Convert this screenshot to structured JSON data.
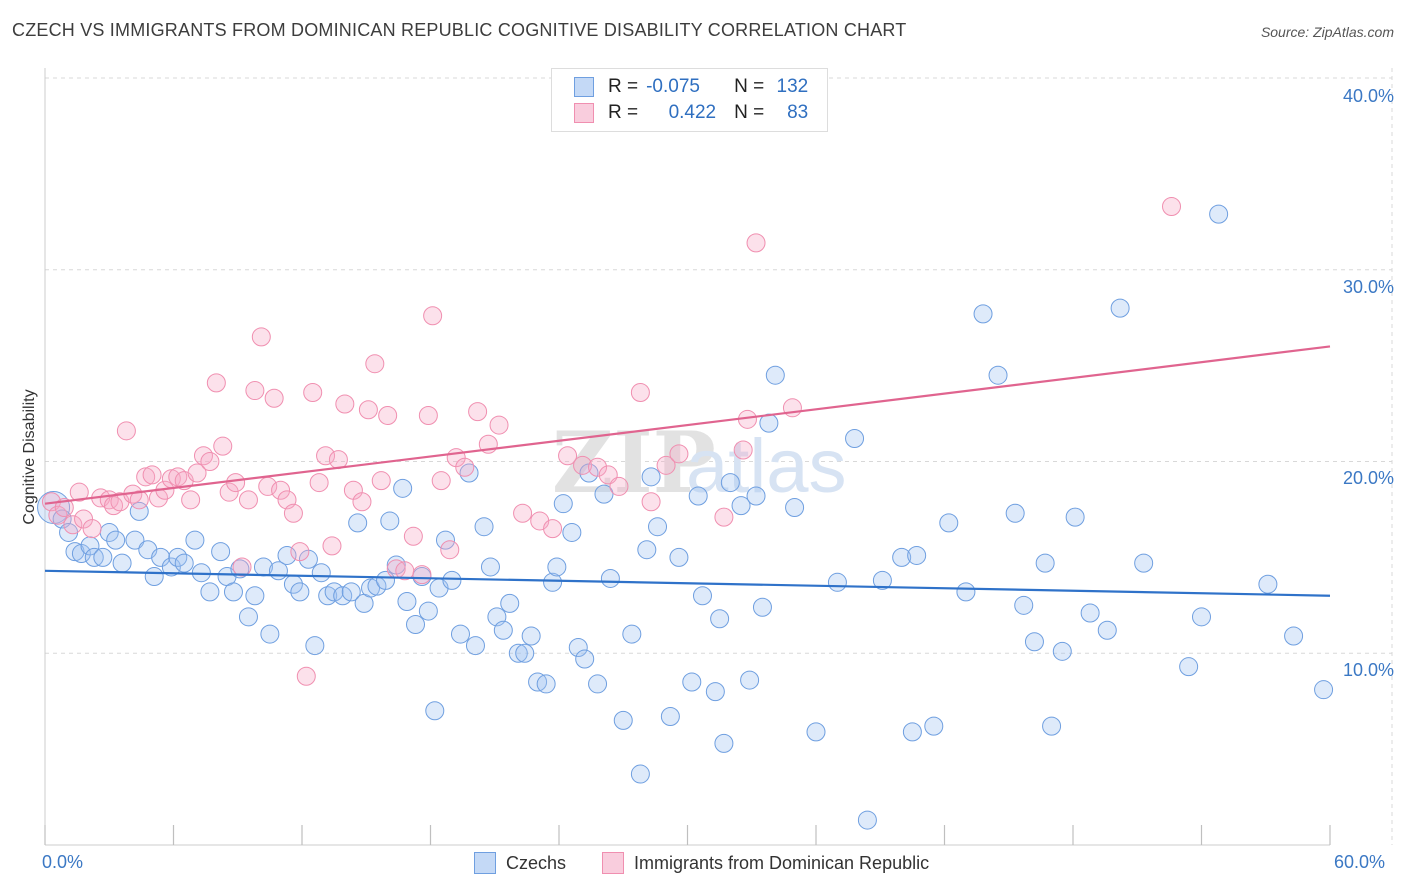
{
  "title": "CZECH VS IMMIGRANTS FROM DOMINICAN REPUBLIC COGNITIVE DISABILITY CORRELATION CHART",
  "source": "Source: ZipAtlas.com",
  "watermark": {
    "part1": "ZIP",
    "part2": "atlas"
  },
  "colors": {
    "blue": "#6f9fe0",
    "blue_line": "#2f72c9",
    "pink": "#f08fb0",
    "pink_line": "#e0648f",
    "grid": "#d8d8d8",
    "tick_text": "#3b78c4"
  },
  "stats": [
    {
      "r_label": "R =",
      "r_value": "-0.075",
      "n_label": "N =",
      "n_value": "132"
    },
    {
      "r_label": "R =",
      "r_value": "0.422",
      "n_label": "N =",
      "n_value": "83"
    }
  ],
  "legend": [
    {
      "label": "Czechs"
    },
    {
      "label": "Immigrants from Dominican Republic"
    }
  ],
  "chart_data": {
    "type": "scatter",
    "title": "CZECH VS IMMIGRANTS FROM DOMINICAN REPUBLIC COGNITIVE DISABILITY CORRELATION CHART",
    "xlabel": "",
    "ylabel": "Cognitive Disability",
    "xlim": [
      0,
      60
    ],
    "ylim": [
      0,
      40
    ],
    "x_tick_labels": [
      "0.0%",
      "60.0%"
    ],
    "y_ticks": [
      10,
      20,
      30,
      40
    ],
    "y_tick_labels": [
      "10.0%",
      "20.0%",
      "30.0%",
      "40.0%"
    ],
    "grid": true,
    "legend_position": "bottom",
    "series": [
      {
        "name": "Czechs",
        "r": -0.075,
        "n": 132,
        "trend": {
          "x": [
            0,
            60
          ],
          "y": [
            14.3,
            13.0
          ]
        },
        "points": [
          [
            0.4,
            17.6
          ],
          [
            0.8,
            17.0
          ],
          [
            1.1,
            16.3
          ],
          [
            1.4,
            15.3
          ],
          [
            1.7,
            15.2
          ],
          [
            2.1,
            15.6
          ],
          [
            2.3,
            15.0
          ],
          [
            2.7,
            15.0
          ],
          [
            3.0,
            16.3
          ],
          [
            3.3,
            15.9
          ],
          [
            3.6,
            14.7
          ],
          [
            4.2,
            15.9
          ],
          [
            4.4,
            17.4
          ],
          [
            4.8,
            15.4
          ],
          [
            5.1,
            14.0
          ],
          [
            5.4,
            15.0
          ],
          [
            5.9,
            14.5
          ],
          [
            6.2,
            15.0
          ],
          [
            6.5,
            14.7
          ],
          [
            7.0,
            15.9
          ],
          [
            7.3,
            14.2
          ],
          [
            7.7,
            13.2
          ],
          [
            8.2,
            15.3
          ],
          [
            8.5,
            14.0
          ],
          [
            8.8,
            13.2
          ],
          [
            9.1,
            14.4
          ],
          [
            9.5,
            11.9
          ],
          [
            9.8,
            13.0
          ],
          [
            10.2,
            14.5
          ],
          [
            10.5,
            11.0
          ],
          [
            10.9,
            14.3
          ],
          [
            11.3,
            15.1
          ],
          [
            11.6,
            13.6
          ],
          [
            11.9,
            13.2
          ],
          [
            12.3,
            14.9
          ],
          [
            12.6,
            10.4
          ],
          [
            12.9,
            14.2
          ],
          [
            13.2,
            13.0
          ],
          [
            13.5,
            13.2
          ],
          [
            13.9,
            13.0
          ],
          [
            14.3,
            13.2
          ],
          [
            14.6,
            16.8
          ],
          [
            14.9,
            12.6
          ],
          [
            15.2,
            13.4
          ],
          [
            15.5,
            13.5
          ],
          [
            15.9,
            13.8
          ],
          [
            16.1,
            16.9
          ],
          [
            16.4,
            14.6
          ],
          [
            16.7,
            18.6
          ],
          [
            16.9,
            12.7
          ],
          [
            17.3,
            11.5
          ],
          [
            17.6,
            14.0
          ],
          [
            17.9,
            12.2
          ],
          [
            18.2,
            7.0
          ],
          [
            18.4,
            13.4
          ],
          [
            18.7,
            15.9
          ],
          [
            19.0,
            13.8
          ],
          [
            19.4,
            11.0
          ],
          [
            19.8,
            19.4
          ],
          [
            20.1,
            10.4
          ],
          [
            20.5,
            16.6
          ],
          [
            20.8,
            14.5
          ],
          [
            21.1,
            11.9
          ],
          [
            21.4,
            11.2
          ],
          [
            21.7,
            12.6
          ],
          [
            22.1,
            10.0
          ],
          [
            22.4,
            10.0
          ],
          [
            22.7,
            10.9
          ],
          [
            23.0,
            8.5
          ],
          [
            23.4,
            8.4
          ],
          [
            23.7,
            13.7
          ],
          [
            23.9,
            14.5
          ],
          [
            24.2,
            17.8
          ],
          [
            24.6,
            16.3
          ],
          [
            24.9,
            10.3
          ],
          [
            25.2,
            9.7
          ],
          [
            25.4,
            19.4
          ],
          [
            25.8,
            8.4
          ],
          [
            26.1,
            18.3
          ],
          [
            26.4,
            13.9
          ],
          [
            27.0,
            6.5
          ],
          [
            27.4,
            11.0
          ],
          [
            27.8,
            3.7
          ],
          [
            28.1,
            15.4
          ],
          [
            28.3,
            19.2
          ],
          [
            28.6,
            16.6
          ],
          [
            29.2,
            6.7
          ],
          [
            29.6,
            15.0
          ],
          [
            30.2,
            8.5
          ],
          [
            30.5,
            18.2
          ],
          [
            30.7,
            13.0
          ],
          [
            31.3,
            8.0
          ],
          [
            31.5,
            11.8
          ],
          [
            31.7,
            5.3
          ],
          [
            32.0,
            18.9
          ],
          [
            32.5,
            17.7
          ],
          [
            32.9,
            8.6
          ],
          [
            33.2,
            18.2
          ],
          [
            33.5,
            12.4
          ],
          [
            33.8,
            22.0
          ],
          [
            34.1,
            24.5
          ],
          [
            35.0,
            17.6
          ],
          [
            36.0,
            5.9
          ],
          [
            37.0,
            13.7
          ],
          [
            37.8,
            21.2
          ],
          [
            38.4,
            1.3
          ],
          [
            39.1,
            13.8
          ],
          [
            40.0,
            15.0
          ],
          [
            40.5,
            5.9
          ],
          [
            40.7,
            15.1
          ],
          [
            41.5,
            6.2
          ],
          [
            42.2,
            16.8
          ],
          [
            43.0,
            13.2
          ],
          [
            43.8,
            27.7
          ],
          [
            44.5,
            24.5
          ],
          [
            45.3,
            17.3
          ],
          [
            45.7,
            12.5
          ],
          [
            46.2,
            10.6
          ],
          [
            46.7,
            14.7
          ],
          [
            47.5,
            10.1
          ],
          [
            48.1,
            17.1
          ],
          [
            48.8,
            12.1
          ],
          [
            49.6,
            11.2
          ],
          [
            50.2,
            28.0
          ],
          [
            51.3,
            14.7
          ],
          [
            53.4,
            9.3
          ],
          [
            54.0,
            11.9
          ],
          [
            54.8,
            32.9
          ],
          [
            57.1,
            13.6
          ],
          [
            58.3,
            10.9
          ],
          [
            59.7,
            8.1
          ],
          [
            47.0,
            6.2
          ]
        ]
      },
      {
        "name": "Immigrants from Dominican Republic",
        "r": 0.422,
        "n": 83,
        "trend": {
          "x": [
            0,
            60
          ],
          "y": [
            17.8,
            26.0
          ]
        },
        "points": [
          [
            0.3,
            17.9
          ],
          [
            0.6,
            17.2
          ],
          [
            0.9,
            17.6
          ],
          [
            1.3,
            16.7
          ],
          [
            1.6,
            18.4
          ],
          [
            1.8,
            17.0
          ],
          [
            2.2,
            16.5
          ],
          [
            2.6,
            18.1
          ],
          [
            3.0,
            18.0
          ],
          [
            3.2,
            17.7
          ],
          [
            3.5,
            17.9
          ],
          [
            3.8,
            21.6
          ],
          [
            4.1,
            18.3
          ],
          [
            4.4,
            18.0
          ],
          [
            4.7,
            19.2
          ],
          [
            5.0,
            19.3
          ],
          [
            5.3,
            18.1
          ],
          [
            5.6,
            18.5
          ],
          [
            5.9,
            19.1
          ],
          [
            6.2,
            19.2
          ],
          [
            6.5,
            19.0
          ],
          [
            6.8,
            18.0
          ],
          [
            7.1,
            19.4
          ],
          [
            7.4,
            20.3
          ],
          [
            7.7,
            20.0
          ],
          [
            8.0,
            24.1
          ],
          [
            8.3,
            20.8
          ],
          [
            8.6,
            18.4
          ],
          [
            8.9,
            18.9
          ],
          [
            9.2,
            14.5
          ],
          [
            9.5,
            18.0
          ],
          [
            9.8,
            23.7
          ],
          [
            10.1,
            26.5
          ],
          [
            10.4,
            18.7
          ],
          [
            10.7,
            23.3
          ],
          [
            11.0,
            18.5
          ],
          [
            11.3,
            18.0
          ],
          [
            11.6,
            17.3
          ],
          [
            11.9,
            15.3
          ],
          [
            12.2,
            8.8
          ],
          [
            12.5,
            23.6
          ],
          [
            12.8,
            18.9
          ],
          [
            13.1,
            20.3
          ],
          [
            13.4,
            15.6
          ],
          [
            13.7,
            20.1
          ],
          [
            14.0,
            23.0
          ],
          [
            14.4,
            18.5
          ],
          [
            14.8,
            17.9
          ],
          [
            15.1,
            22.7
          ],
          [
            15.4,
            25.1
          ],
          [
            15.7,
            19.0
          ],
          [
            16.0,
            22.4
          ],
          [
            16.4,
            14.4
          ],
          [
            16.8,
            14.3
          ],
          [
            17.2,
            16.1
          ],
          [
            17.6,
            14.1
          ],
          [
            17.9,
            22.4
          ],
          [
            18.1,
            27.6
          ],
          [
            18.5,
            19.0
          ],
          [
            18.9,
            15.4
          ],
          [
            19.2,
            20.2
          ],
          [
            19.6,
            19.7
          ],
          [
            20.2,
            22.6
          ],
          [
            20.7,
            20.9
          ],
          [
            21.2,
            21.9
          ],
          [
            22.3,
            17.3
          ],
          [
            23.1,
            16.9
          ],
          [
            23.7,
            16.5
          ],
          [
            24.4,
            20.3
          ],
          [
            25.1,
            19.8
          ],
          [
            25.8,
            19.7
          ],
          [
            26.3,
            19.3
          ],
          [
            26.8,
            18.7
          ],
          [
            27.8,
            23.6
          ],
          [
            28.3,
            17.9
          ],
          [
            29.0,
            19.8
          ],
          [
            29.6,
            20.4
          ],
          [
            31.7,
            17.1
          ],
          [
            32.6,
            20.6
          ],
          [
            32.8,
            22.2
          ],
          [
            33.2,
            31.4
          ],
          [
            34.9,
            22.8
          ],
          [
            52.6,
            33.3
          ]
        ]
      }
    ]
  }
}
